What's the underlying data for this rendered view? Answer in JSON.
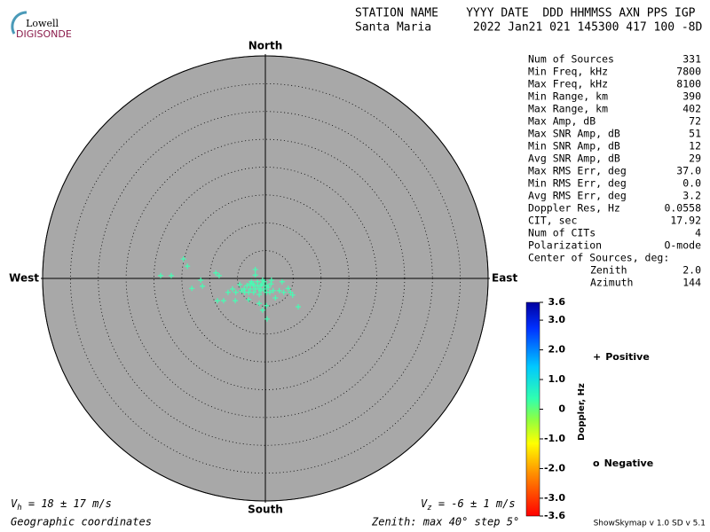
{
  "header": {
    "logo_top": "Lowell",
    "logo_bottom": "DIGISONDE",
    "columns": "STATION NAME    YYYY DATE  DDD HHMMSS AXN PPS IGP",
    "values": "Santa Maria      2022 Jan21 021 145300 417 100 -8D"
  },
  "stats": {
    "rows": [
      [
        "Num of Sources",
        "331"
      ],
      [
        "Min Freq, kHz",
        "7800"
      ],
      [
        "Max Freq, kHz",
        "8100"
      ],
      [
        "Min Range, km",
        "390"
      ],
      [
        "Max Range, km",
        "402"
      ],
      [
        "Max Amp, dB",
        "72"
      ],
      [
        "Max SNR Amp, dB",
        "51"
      ],
      [
        "Min SNR Amp, dB",
        "12"
      ],
      [
        "Avg SNR Amp, dB",
        "29"
      ],
      [
        "Max RMS Err, deg",
        "37.0"
      ],
      [
        "Min RMS Err, deg",
        "0.0"
      ],
      [
        "Avg RMS Err, deg",
        "3.2"
      ],
      [
        "Doppler Res, Hz",
        "0.0558"
      ],
      [
        "CIT, sec",
        "17.92"
      ],
      [
        "Num of CITs",
        "4"
      ],
      [
        "Polarization",
        "O-mode"
      ]
    ],
    "center_title": "Center of Sources, deg:",
    "center_rows": [
      [
        "Zenith",
        "2.0"
      ],
      [
        "Azimuth",
        "144"
      ]
    ]
  },
  "footer": {
    "vh_v": "V",
    "vh_sub": "h",
    "vh_rest": " = 18 ± 17 m/s",
    "vz_v": "V",
    "vz_sub": "z",
    "vz_rest": " = -6 ± 1 m/s",
    "coords": "Geographic coordinates",
    "zenith": "Zenith: max 40°  step 5°",
    "version": "ShowSkymap v 1.0  SD v 5.1"
  },
  "chart_data": [
    {
      "type": "skymap",
      "north": "North",
      "south": "South",
      "east": "East",
      "west": "West",
      "rlim": [
        0,
        40
      ],
      "rticks": [
        5,
        10,
        15,
        20,
        25,
        30,
        35,
        40
      ],
      "color": "#44ffb4",
      "x": [
        -14.7,
        -14.0,
        -18.8,
        -16.9,
        -11.6,
        -11.3,
        -13.2,
        -8.9,
        -8.3,
        -8.6,
        -7.5,
        -5.4,
        -4.6,
        -5.3,
        -3.8,
        -3.3,
        -2.5,
        -1.8,
        -2.2,
        -1.4,
        -1.1,
        -0.6,
        -0.2,
        0.2,
        0.5,
        1.0,
        1.4,
        1.8,
        2.5,
        3.0,
        3.3,
        4.1,
        4.5,
        4.9,
        5.9,
        0.2,
        0.3,
        -0.5,
        -1.1,
        -3.0,
        -2.1,
        -0.8,
        -1.8,
        -2.7,
        -3.7,
        -4.3,
        -0.5,
        0.2,
        0.8,
        -1.1,
        -1.4,
        -0.8,
        -2.1,
        -0.2,
        -2.7,
        1.1,
        -1.8,
        -3.0,
        -5.9,
        -6.7
      ],
      "y": [
        3.5,
        2.2,
        0.5,
        0.5,
        -0.3,
        -1.4,
        -1.8,
        1.0,
        0.5,
        -4.0,
        -4.0,
        -4.0,
        -1.1,
        -2.5,
        -1.9,
        -1.3,
        -0.6,
        1.6,
        -1.0,
        -1.3,
        -1.9,
        -1.0,
        -0.6,
        -2.5,
        -1.6,
        -1.0,
        -2.2,
        -3.5,
        -2.2,
        -0.6,
        -2.5,
        -1.8,
        -2.5,
        -3.0,
        -5.1,
        -4.9,
        -7.3,
        -5.7,
        -4.5,
        -3.8,
        -2.5,
        -2.2,
        -1.9,
        -1.9,
        -2.5,
        -2.2,
        -0.3,
        -1.3,
        -2.5,
        -2.9,
        -0.6,
        -1.3,
        -1.3,
        -1.9,
        -1.0,
        -0.3,
        0.6,
        -2.5,
        -1.9,
        -2.5
      ]
    },
    {
      "type": "colorbar",
      "label": "Doppler, Hz",
      "ylim": [
        -3.6,
        3.6
      ],
      "yticks": [
        3.6,
        {
          "value": 3,
          "label": "3.0"
        },
        {
          "value": 2,
          "label": "2.0"
        },
        {
          "value": 1,
          "label": "1.0"
        },
        0,
        {
          "value": -1,
          "label": "-1.0"
        },
        {
          "value": -2,
          "label": "-2.0"
        },
        {
          "value": -3,
          "label": "-3.0"
        },
        -3.6
      ],
      "legend": [
        {
          "symbol": "+",
          "name": "Positive",
          "color": "#0000cc"
        },
        {
          "symbol": "o",
          "name": "Negative",
          "color": "#dd0000"
        }
      ]
    }
  ]
}
